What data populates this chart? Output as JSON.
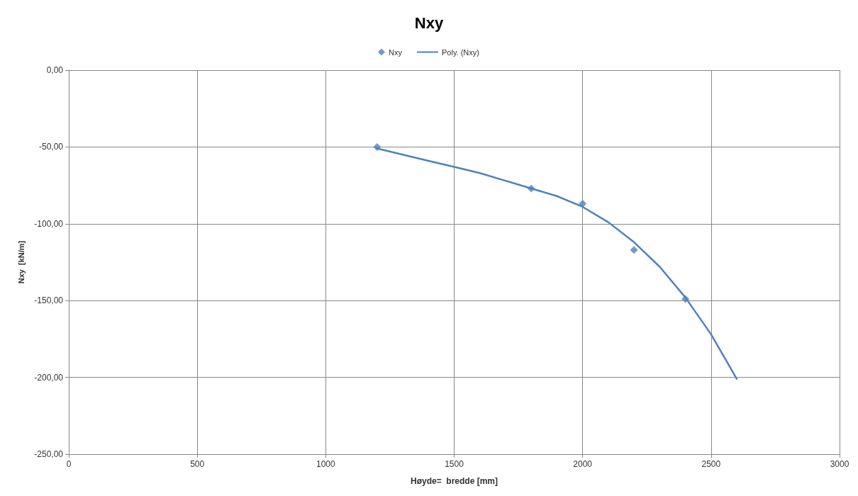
{
  "chart_data": {
    "type": "scatter",
    "title": "Nxy",
    "xlabel": "Høyde=  bredde [mm]",
    "ylabel": "Nxy  [kN/m]",
    "xlim": [
      0,
      3000
    ],
    "xticks": [
      0,
      500,
      1000,
      1500,
      2000,
      2500,
      3000
    ],
    "ylim": [
      -250,
      0
    ],
    "yticks": [
      {
        "value": -250,
        "label": "-250,00"
      },
      {
        "value": -200,
        "label": "-200,00"
      },
      {
        "value": -150,
        "label": "-150,00"
      },
      {
        "value": -100,
        "label": "-100,00"
      },
      {
        "value": -50,
        "label": "-50,00"
      },
      {
        "value": 0,
        "label": "0,00"
      }
    ],
    "grid": true,
    "legend": "top",
    "series": [
      {
        "name": "Nxy",
        "type": "scatter",
        "marker": "diamond",
        "color": "#4f81bd",
        "x": [
          1200,
          1800,
          2000,
          2200,
          2400
        ],
        "values": [
          -50,
          -77,
          -87,
          -117,
          -149
        ]
      },
      {
        "name": "Poly. (Nxy)",
        "type": "line",
        "marker": "none",
        "color": "#4f81bd",
        "x": [
          1200,
          1300,
          1400,
          1500,
          1600,
          1700,
          1800,
          1900,
          2000,
          2100,
          2200,
          2300,
          2400,
          2500,
          2600
        ],
        "values": [
          -51,
          -55,
          -59,
          -63,
          -67,
          -72,
          -77,
          -82,
          -89,
          -99,
          -112,
          -128,
          -148,
          -172,
          -201
        ]
      }
    ]
  }
}
